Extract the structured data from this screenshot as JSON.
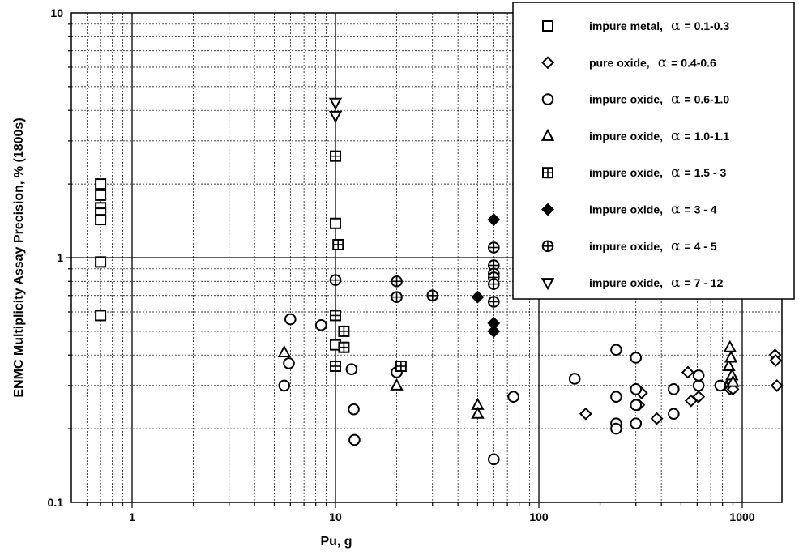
{
  "chart_data": {
    "type": "scatter",
    "xlabel": "Pu, g",
    "ylabel": "ENMC Multiplicity Assay Precision, % (1800s)",
    "xscale": "log",
    "yscale": "log",
    "xlim": [
      0.5,
      2000
    ],
    "ylim": [
      0.1,
      10
    ],
    "x_tick_labels": [
      "1",
      "10",
      "100",
      "1000"
    ],
    "y_tick_labels": [
      "0.1",
      "1",
      "10"
    ],
    "grid": "major solid, minor dotted",
    "legend_position": "top-right",
    "series": [
      {
        "name": "impure metal,",
        "alpha_label": "α",
        "alpha_range": "= 0.1-0.3",
        "marker": "square",
        "points": [
          [
            0.7,
            2.0
          ],
          [
            0.7,
            1.8
          ],
          [
            0.7,
            1.6
          ],
          [
            0.7,
            1.52
          ],
          [
            0.7,
            1.43
          ],
          [
            0.7,
            0.96
          ],
          [
            0.7,
            0.58
          ],
          [
            10,
            1.38
          ],
          [
            10,
            0.44
          ]
        ]
      },
      {
        "name": "pure oxide,",
        "alpha_label": "α",
        "alpha_range": "= 0.4-0.6",
        "marker": "diamond",
        "points": [
          [
            170,
            0.23
          ],
          [
            310,
            0.25
          ],
          [
            320,
            0.28
          ],
          [
            380,
            0.22
          ],
          [
            540,
            0.34
          ],
          [
            560,
            0.26
          ],
          [
            610,
            0.27
          ],
          [
            870,
            0.29
          ],
          [
            880,
            0.31
          ],
          [
            900,
            0.29
          ],
          [
            1450,
            0.4
          ],
          [
            1460,
            0.38
          ],
          [
            1480,
            0.3
          ]
        ]
      },
      {
        "name": "impure oxide,",
        "alpha_label": "α",
        "alpha_range": "= 0.6-1.0",
        "marker": "circle",
        "points": [
          [
            5.6,
            0.3
          ],
          [
            5.9,
            0.37
          ],
          [
            6.0,
            0.56
          ],
          [
            8.5,
            0.53
          ],
          [
            12,
            0.35
          ],
          [
            12.3,
            0.24
          ],
          [
            12.4,
            0.18
          ],
          [
            20,
            0.34
          ],
          [
            60,
            0.15
          ],
          [
            75,
            0.27
          ],
          [
            150,
            0.32
          ],
          [
            240,
            0.42
          ],
          [
            240,
            0.27
          ],
          [
            240,
            0.21
          ],
          [
            240,
            0.2
          ],
          [
            300,
            0.39
          ],
          [
            300,
            0.29
          ],
          [
            300,
            0.25
          ],
          [
            300,
            0.21
          ],
          [
            460,
            0.29
          ],
          [
            460,
            0.23
          ],
          [
            610,
            0.3
          ],
          [
            610,
            0.33
          ],
          [
            780,
            0.3
          ]
        ]
      },
      {
        "name": "impure oxide,",
        "alpha_label": "α",
        "alpha_range": "= 1.0-1.1",
        "marker": "triangle-up",
        "points": [
          [
            5.6,
            0.41
          ],
          [
            20,
            0.3
          ],
          [
            50,
            0.25
          ],
          [
            50,
            0.23
          ],
          [
            860,
            0.36
          ],
          [
            870,
            0.43
          ],
          [
            880,
            0.39
          ],
          [
            890,
            0.33
          ],
          [
            900,
            0.31
          ]
        ]
      },
      {
        "name": "impure oxide,",
        "alpha_label": "α",
        "alpha_range": "= 1.5 - 3",
        "marker": "square-cross",
        "points": [
          [
            10,
            2.6
          ],
          [
            10.3,
            1.13
          ],
          [
            10,
            0.58
          ],
          [
            10,
            0.36
          ],
          [
            11,
            0.5
          ],
          [
            11,
            0.43
          ],
          [
            21,
            0.36
          ]
        ]
      },
      {
        "name": "impure oxide,",
        "alpha_label": "α",
        "alpha_range": "= 3 - 4",
        "marker": "diamond-filled",
        "points": [
          [
            60,
            1.43
          ],
          [
            50,
            0.69
          ],
          [
            60,
            0.54
          ],
          [
            60,
            0.5
          ]
        ]
      },
      {
        "name": "impure oxide,",
        "alpha_label": "α",
        "alpha_range": "= 4 - 5",
        "marker": "circle-cross",
        "points": [
          [
            10,
            0.81
          ],
          [
            20,
            0.8
          ],
          [
            20,
            0.69
          ],
          [
            30,
            0.7
          ],
          [
            60,
            1.1
          ],
          [
            60,
            0.93
          ],
          [
            60,
            0.86
          ],
          [
            60,
            0.83
          ],
          [
            60,
            0.78
          ],
          [
            60,
            0.66
          ]
        ]
      },
      {
        "name": "impure oxide,",
        "alpha_label": "α",
        "alpha_range": "= 7 - 12",
        "marker": "triangle-down",
        "points": [
          [
            10,
            4.3
          ],
          [
            10,
            3.8
          ]
        ]
      }
    ]
  }
}
